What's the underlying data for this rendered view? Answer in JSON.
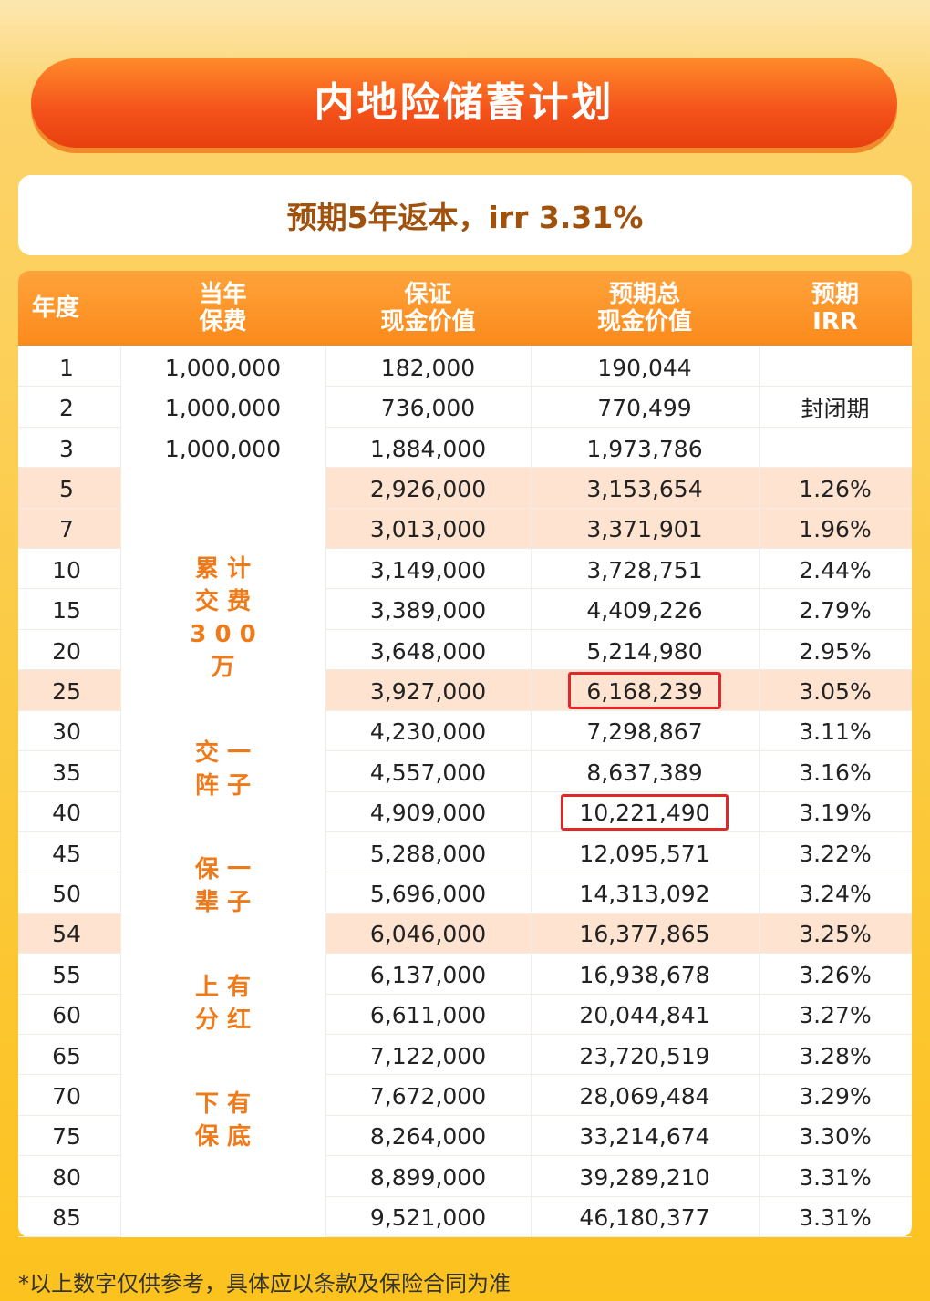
{
  "header": {
    "title": "内地险储蓄计划",
    "subtitle": "预期5年返本，irr 3.31%"
  },
  "table": {
    "columns": [
      [
        "年度"
      ],
      [
        "当年",
        "保费"
      ],
      [
        "保证",
        "现金价值"
      ],
      [
        "预期总",
        "现金价值"
      ],
      [
        "预期",
        "IRR"
      ]
    ],
    "lock_period": "封闭期",
    "slogans": [
      [
        "累 计",
        "交 费",
        "3 0 0",
        "万"
      ],
      [
        "交 一",
        "阵 子"
      ],
      [
        "保 一",
        "辈 子"
      ],
      [
        "上 有",
        "分 红"
      ],
      [
        "下 有",
        "保 底"
      ]
    ],
    "rows": [
      {
        "year": "1",
        "premium": "1,000,000",
        "guaranteed": "182,000",
        "total": "190,044"
      },
      {
        "year": "2",
        "premium": "1,000,000",
        "guaranteed": "736,000",
        "total": "770,499"
      },
      {
        "year": "3",
        "premium": "1,000,000",
        "guaranteed": "1,884,000",
        "total": "1,973,786"
      },
      {
        "year": "5",
        "guaranteed": "2,926,000",
        "total": "3,153,654",
        "irr": "1.26%"
      },
      {
        "year": "7",
        "guaranteed": "3,013,000",
        "total": "3,371,901",
        "irr": "1.96%"
      },
      {
        "year": "10",
        "guaranteed": "3,149,000",
        "total": "3,728,751",
        "irr": "2.44%"
      },
      {
        "year": "15",
        "guaranteed": "3,389,000",
        "total": "4,409,226",
        "irr": "2.79%"
      },
      {
        "year": "20",
        "guaranteed": "3,648,000",
        "total": "5,214,980",
        "irr": "2.95%"
      },
      {
        "year": "25",
        "guaranteed": "3,927,000",
        "total": "6,168,239",
        "irr": "3.05%"
      },
      {
        "year": "30",
        "guaranteed": "4,230,000",
        "total": "7,298,867",
        "irr": "3.11%"
      },
      {
        "year": "35",
        "guaranteed": "4,557,000",
        "total": "8,637,389",
        "irr": "3.16%"
      },
      {
        "year": "40",
        "guaranteed": "4,909,000",
        "total": "10,221,490",
        "irr": "3.19%"
      },
      {
        "year": "45",
        "guaranteed": "5,288,000",
        "total": "12,095,571",
        "irr": "3.22%"
      },
      {
        "year": "50",
        "guaranteed": "5,696,000",
        "total": "14,313,092",
        "irr": "3.24%"
      },
      {
        "year": "54",
        "guaranteed": "6,046,000",
        "total": "16,377,865",
        "irr": "3.25%"
      },
      {
        "year": "55",
        "guaranteed": "6,137,000",
        "total": "16,938,678",
        "irr": "3.26%"
      },
      {
        "year": "60",
        "guaranteed": "6,611,000",
        "total": "20,044,841",
        "irr": "3.27%"
      },
      {
        "year": "65",
        "guaranteed": "7,122,000",
        "total": "23,720,519",
        "irr": "3.28%"
      },
      {
        "year": "70",
        "guaranteed": "7,672,000",
        "total": "28,069,484",
        "irr": "3.29%"
      },
      {
        "year": "75",
        "guaranteed": "8,264,000",
        "total": "33,214,674",
        "irr": "3.30%"
      },
      {
        "year": "80",
        "guaranteed": "8,899,000",
        "total": "39,289,210",
        "irr": "3.31%"
      },
      {
        "year": "85",
        "guaranteed": "9,521,000",
        "total": "46,180,377",
        "irr": "3.31%"
      }
    ]
  },
  "footer": {
    "note": "*以上数字仅供参考，具体应以条款及保险合同为准"
  }
}
